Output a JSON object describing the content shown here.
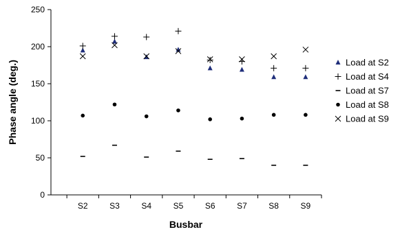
{
  "chart_data": {
    "type": "scatter",
    "title": "",
    "xlabel": "Busbar",
    "ylabel": "Phase angle (deg.)",
    "categories": [
      "S2",
      "S3",
      "S4",
      "S5",
      "S6",
      "S7",
      "S8",
      "S9"
    ],
    "ylim": [
      0,
      250
    ],
    "yticks": [
      0,
      50,
      100,
      150,
      200,
      250
    ],
    "grid": false,
    "legend_position": "right",
    "series": [
      {
        "name": "Load at S2",
        "marker": "triangle",
        "color": "#1f2e7a",
        "values": [
          195,
          207,
          186,
          196,
          171,
          169,
          159,
          159
        ]
      },
      {
        "name": "Load at S4",
        "marker": "plus",
        "color": "#000000",
        "values": [
          201,
          214,
          213,
          221,
          182,
          180,
          171,
          171
        ]
      },
      {
        "name": "Load at S7",
        "marker": "dash",
        "color": "#000000",
        "values": [
          52,
          67,
          51,
          59,
          48,
          49,
          40,
          40
        ]
      },
      {
        "name": "Load at S8",
        "marker": "circle",
        "color": "#000000",
        "values": [
          107,
          122,
          106,
          114,
          102,
          103,
          108,
          108
        ]
      },
      {
        "name": "Load at S9",
        "marker": "cross",
        "color": "#000000",
        "values": [
          187,
          202,
          187,
          194,
          183,
          183,
          187,
          196
        ]
      }
    ]
  }
}
